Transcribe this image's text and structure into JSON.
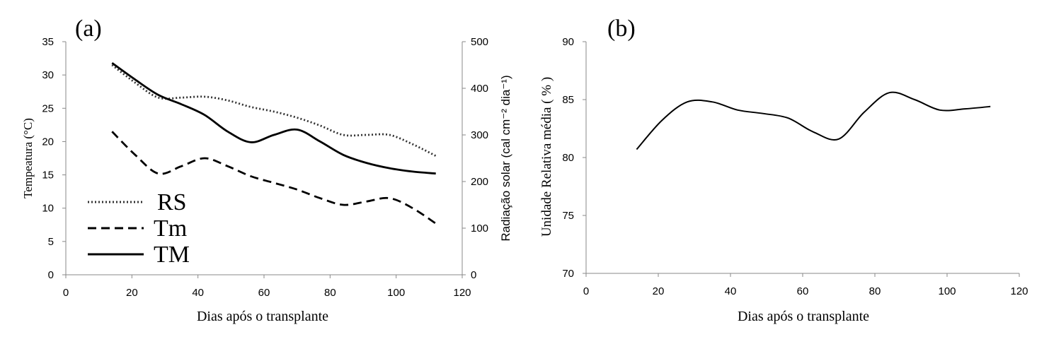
{
  "chart_data": [
    {
      "panel_label": "(a)",
      "type": "line",
      "xlabel": "Dias após o transplante",
      "ylabel": "Tempeatura (°C)",
      "ylabel_right": "Radiação solar (cal cm⁻² dia⁻¹)",
      "xlim": [
        0,
        120
      ],
      "ylim": [
        0,
        35
      ],
      "ylim_right": [
        0,
        500
      ],
      "xticks": [
        0,
        20,
        40,
        60,
        80,
        100,
        120
      ],
      "yticks": [
        0,
        5,
        10,
        15,
        20,
        25,
        30,
        35
      ],
      "yticks_right": [
        0,
        100,
        200,
        300,
        400,
        500
      ],
      "grid": false,
      "legend_position": "bottom-left",
      "series": [
        {
          "name": "RS",
          "axis": "right",
          "style": "dotted",
          "x": [
            14,
            21,
            28,
            35,
            42,
            49,
            56,
            63,
            70,
            77,
            84,
            91,
            98,
            105,
            112
          ],
          "y": [
            450,
            412,
            380,
            380,
            382,
            374,
            360,
            350,
            337,
            320,
            300,
            300,
            300,
            280,
            255
          ]
        },
        {
          "name": "Tm",
          "axis": "left",
          "style": "dashed",
          "x": [
            14,
            21,
            28,
            35,
            42,
            49,
            56,
            63,
            70,
            77,
            84,
            91,
            98,
            105,
            112
          ],
          "y": [
            21.5,
            18.0,
            15.2,
            16.3,
            17.5,
            16.3,
            14.8,
            13.8,
            12.8,
            11.5,
            10.5,
            11.0,
            11.5,
            10.0,
            7.7
          ]
        },
        {
          "name": "TM",
          "axis": "left",
          "style": "solid",
          "x": [
            14,
            21,
            28,
            35,
            42,
            49,
            56,
            63,
            70,
            77,
            84,
            91,
            98,
            105,
            112
          ],
          "y": [
            31.8,
            29.3,
            27.0,
            25.6,
            24.0,
            21.5,
            19.9,
            21.0,
            21.8,
            20.0,
            18.0,
            16.8,
            16.0,
            15.5,
            15.2
          ]
        }
      ]
    },
    {
      "panel_label": "(b)",
      "type": "line",
      "xlabel": "Dias após o transplante",
      "ylabel": "Unidade Relativa média ( % )",
      "xlim": [
        0,
        120
      ],
      "ylim": [
        70,
        90
      ],
      "xticks": [
        0,
        20,
        40,
        60,
        80,
        100,
        120
      ],
      "yticks": [
        70,
        75,
        80,
        85,
        90
      ],
      "grid": false,
      "series": [
        {
          "style": "solid",
          "x": [
            14,
            21,
            28,
            35,
            42,
            49,
            56,
            63,
            70,
            77,
            84,
            91,
            98,
            105,
            112
          ],
          "y": [
            80.7,
            83.2,
            84.8,
            84.8,
            84.1,
            83.8,
            83.4,
            82.2,
            81.6,
            83.9,
            85.6,
            85.0,
            84.1,
            84.2,
            84.4
          ]
        }
      ]
    }
  ]
}
